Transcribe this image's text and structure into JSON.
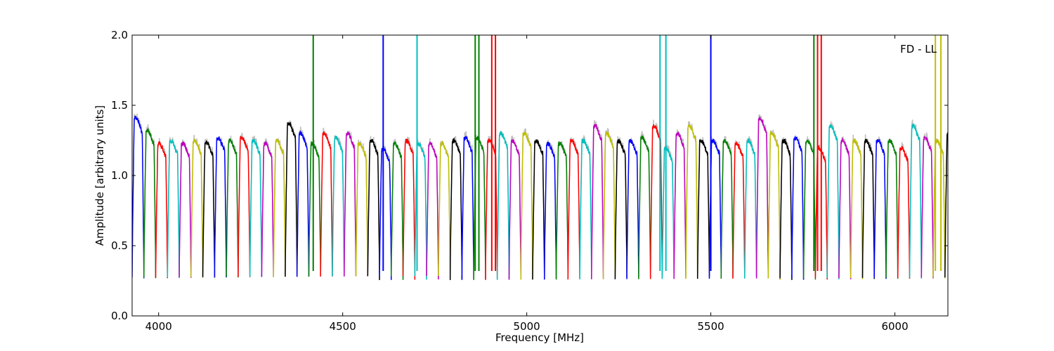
{
  "chart_data": {
    "type": "line",
    "title": "",
    "xlabel": "Frequency [MHz]",
    "ylabel": "Amplitude [arbitrary units]",
    "annotation": "FD - LL",
    "xlim": [
      3928,
      6144
    ],
    "ylim": [
      0.0,
      2.0
    ],
    "xticks": [
      4000,
      4500,
      5000,
      5500,
      6000
    ],
    "yticks": [
      0.0,
      0.5,
      1.0,
      1.5,
      2.0
    ],
    "xtick_labels": [
      "4000",
      "4500",
      "5000",
      "5500",
      "6000"
    ],
    "ytick_labels": [
      "0.0",
      "0.5",
      "1.0",
      "1.5",
      "2.0"
    ],
    "grid": false,
    "legend": false,
    "background_series": {
      "color": "#bfbfbf",
      "description_shown": false
    },
    "channel_width_mhz": 32,
    "channel_min": 0.27,
    "color_cycle": [
      "#0000ff",
      "#008000",
      "#ff0000",
      "#00bfbf",
      "#bf00bf",
      "#bfbf00",
      "#000000"
    ],
    "channels": [
      {
        "start": 3928,
        "level": 1.36
      },
      {
        "start": 3960,
        "level": 1.27
      },
      {
        "start": 3992,
        "level": 1.18
      },
      {
        "start": 4024,
        "level": 1.2
      },
      {
        "start": 4056,
        "level": 1.18
      },
      {
        "start": 4088,
        "level": 1.2
      },
      {
        "start": 4120,
        "level": 1.19
      },
      {
        "start": 4152,
        "level": 1.22
      },
      {
        "start": 4184,
        "level": 1.2
      },
      {
        "start": 4216,
        "level": 1.22
      },
      {
        "start": 4248,
        "level": 1.2
      },
      {
        "start": 4280,
        "level": 1.18
      },
      {
        "start": 4312,
        "level": 1.2
      },
      {
        "start": 4344,
        "level": 1.32
      },
      {
        "start": 4376,
        "level": 1.25
      },
      {
        "start": 4408,
        "level": 1.18,
        "spikes": [
          {
            "x": 4420,
            "y": 2.0
          }
        ]
      },
      {
        "start": 4440,
        "level": 1.25
      },
      {
        "start": 4472,
        "level": 1.22
      },
      {
        "start": 4504,
        "level": 1.25
      },
      {
        "start": 4536,
        "level": 1.18
      },
      {
        "start": 4568,
        "level": 1.2
      },
      {
        "start": 4600,
        "level": 1.14,
        "spikes": [
          {
            "x": 4610,
            "y": 2.0
          }
        ]
      },
      {
        "start": 4632,
        "level": 1.18
      },
      {
        "start": 4664,
        "level": 1.2
      },
      {
        "start": 4696,
        "level": 1.18,
        "spikes": [
          {
            "x": 4702,
            "y": 2.0
          }
        ]
      },
      {
        "start": 4728,
        "level": 1.18
      },
      {
        "start": 4760,
        "level": 1.18
      },
      {
        "start": 4792,
        "level": 1.2
      },
      {
        "start": 4824,
        "level": 1.22
      },
      {
        "start": 4856,
        "level": 1.22,
        "spikes": [
          {
            "x": 4860,
            "y": 2.0
          },
          {
            "x": 4870,
            "y": 2.0
          }
        ]
      },
      {
        "start": 4888,
        "level": 1.2,
        "spikes": [
          {
            "x": 4905,
            "y": 2.0
          },
          {
            "x": 4915,
            "y": 2.0
          }
        ]
      },
      {
        "start": 4920,
        "level": 1.25
      },
      {
        "start": 4952,
        "level": 1.2
      },
      {
        "start": 4984,
        "level": 1.25
      },
      {
        "start": 5016,
        "level": 1.2
      },
      {
        "start": 5048,
        "level": 1.18
      },
      {
        "start": 5080,
        "level": 1.18
      },
      {
        "start": 5112,
        "level": 1.2
      },
      {
        "start": 5144,
        "level": 1.2
      },
      {
        "start": 5176,
        "level": 1.3
      },
      {
        "start": 5208,
        "level": 1.25
      },
      {
        "start": 5240,
        "level": 1.2
      },
      {
        "start": 5272,
        "level": 1.2
      },
      {
        "start": 5304,
        "level": 1.22
      },
      {
        "start": 5336,
        "level": 1.3
      },
      {
        "start": 5368,
        "level": 1.15,
        "spikes": [
          {
            "x": 5362,
            "y": 2.0
          },
          {
            "x": 5378,
            "y": 2.0
          }
        ]
      },
      {
        "start": 5400,
        "level": 1.25
      },
      {
        "start": 5432,
        "level": 1.3
      },
      {
        "start": 5464,
        "level": 1.2
      },
      {
        "start": 5496,
        "level": 1.2,
        "spikes": [
          {
            "x": 5500,
            "y": 2.0
          }
        ]
      },
      {
        "start": 5528,
        "level": 1.2
      },
      {
        "start": 5560,
        "level": 1.18
      },
      {
        "start": 5592,
        "level": 1.2
      },
      {
        "start": 5624,
        "level": 1.35
      },
      {
        "start": 5656,
        "level": 1.25
      },
      {
        "start": 5688,
        "level": 1.2
      },
      {
        "start": 5720,
        "level": 1.22
      },
      {
        "start": 5752,
        "level": 1.2,
        "spikes": [
          {
            "x": 5780,
            "y": 2.0
          }
        ]
      },
      {
        "start": 5784,
        "level": 1.15,
        "spikes": [
          {
            "x": 5790,
            "y": 2.0
          },
          {
            "x": 5800,
            "y": 2.0
          }
        ]
      },
      {
        "start": 5816,
        "level": 1.3
      },
      {
        "start": 5848,
        "level": 1.2
      },
      {
        "start": 5880,
        "level": 1.2
      },
      {
        "start": 5912,
        "level": 1.2
      },
      {
        "start": 5944,
        "level": 1.2
      },
      {
        "start": 5976,
        "level": 1.2
      },
      {
        "start": 6008,
        "level": 1.15
      },
      {
        "start": 6040,
        "level": 1.3
      },
      {
        "start": 6072,
        "level": 1.22
      },
      {
        "start": 6104,
        "level": 1.2,
        "spikes": [
          {
            "x": 6110,
            "y": 2.0
          },
          {
            "x": 6125,
            "y": 2.0
          }
        ]
      },
      {
        "start": 6136,
        "level": 1.25
      }
    ]
  }
}
